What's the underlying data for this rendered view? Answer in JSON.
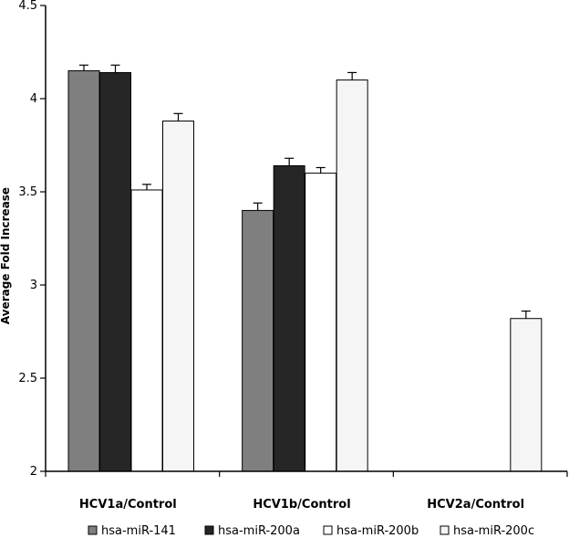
{
  "chart_data": {
    "type": "bar",
    "title": "",
    "xlabel": "",
    "ylabel": "Average Fold Increase",
    "ylim": [
      2,
      4.5
    ],
    "yticks": [
      2,
      2.5,
      3,
      3.5,
      4,
      4.5
    ],
    "ytick_labels": [
      "2",
      "2.5",
      "3",
      "3.5",
      "4",
      "4.5"
    ],
    "categories": [
      "HCV1a/Control",
      "HCV1b/Control",
      "HCV2a/Control"
    ],
    "series": [
      {
        "name": "hsa-miR-141",
        "color": "#7f7f7f",
        "values": [
          4.15,
          3.4,
          null
        ],
        "errors": [
          0.03,
          0.04,
          null
        ]
      },
      {
        "name": "hsa-miR-200a",
        "color": "#262626",
        "values": [
          4.14,
          3.64,
          null
        ],
        "errors": [
          0.04,
          0.04,
          null
        ]
      },
      {
        "name": "hsa-miR-200b",
        "color": "#ffffff",
        "values": [
          3.51,
          3.6,
          null
        ],
        "errors": [
          0.03,
          0.03,
          null
        ]
      },
      {
        "name": "hsa-miR-200c",
        "color": "#f5f5f5",
        "values": [
          3.88,
          4.1,
          2.82
        ],
        "errors": [
          0.04,
          0.04,
          0.04
        ]
      }
    ],
    "grid": false,
    "legend_position": "bottom"
  }
}
